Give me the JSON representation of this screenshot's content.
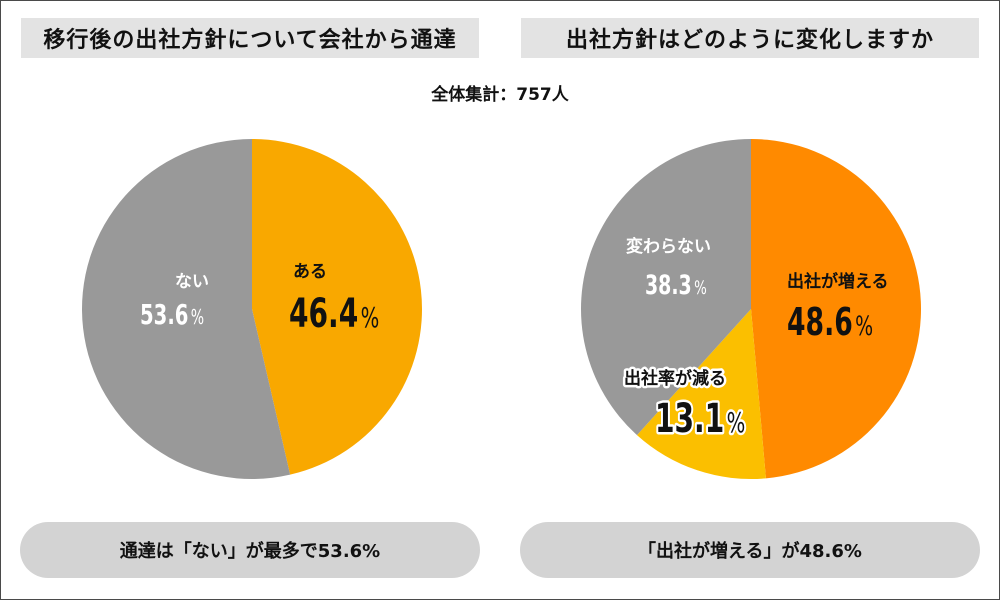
{
  "header": {
    "left_title": "移行後の出社方針について会社から通達",
    "right_title": "出社方針はどのように変化しますか",
    "subtitle": "全体集計：757人"
  },
  "chart_data": [
    {
      "type": "pie",
      "title": "移行後の出社方針について会社から通達",
      "slices": [
        {
          "label": "ある",
          "value": 46.4,
          "value_text": "46.4",
          "color": "#f9a800"
        },
        {
          "label": "ない",
          "value": 53.6,
          "value_text": "53.6",
          "color": "#999999"
        }
      ],
      "unit": "%",
      "start": "12 o'clock, clockwise"
    },
    {
      "type": "pie",
      "title": "出社方針はどのように変化しますか",
      "slices": [
        {
          "label": "出社が増える",
          "value": 48.6,
          "value_text": "48.6",
          "color": "#ff8a00"
        },
        {
          "label": "出社率が減る",
          "value": 13.1,
          "value_text": "13.1",
          "color": "#fbbf00"
        },
        {
          "label": "変わらない",
          "value": 38.3,
          "value_text": "38.3",
          "color": "#999999"
        }
      ],
      "unit": "%",
      "start": "12 o'clock, clockwise"
    }
  ],
  "footer": {
    "left_summary": "通達は「ない」が最多で53.6%",
    "right_summary": "「出社が増える」が48.6%"
  }
}
